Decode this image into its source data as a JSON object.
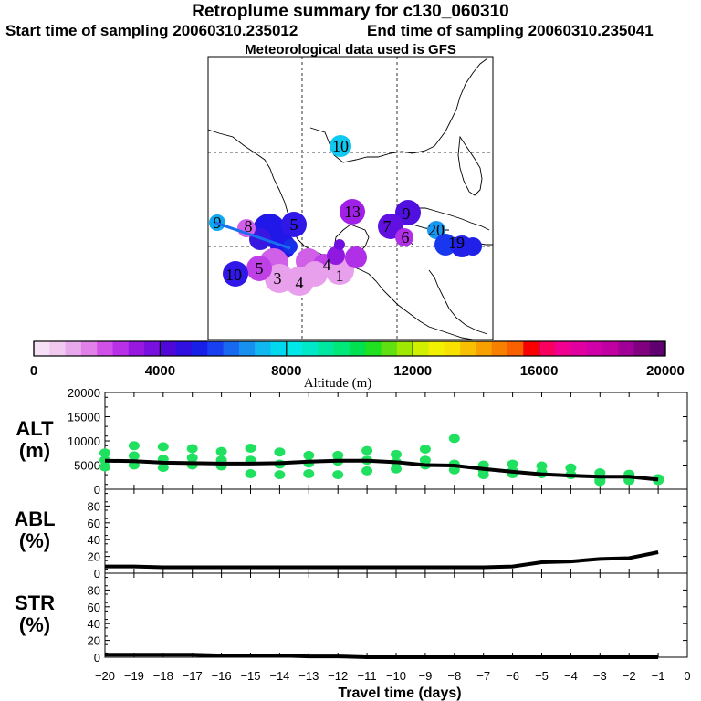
{
  "titles": {
    "main": "Retroplume summary for c130_060310",
    "start": "Start time of sampling 20060310.235012",
    "end": "End time of sampling 20060310.235041",
    "met": "Meteorological data used is GFS"
  },
  "colorbar": {
    "label": "Altitude (m)",
    "ticks": [
      "0",
      "4000",
      "8000",
      "12000",
      "16000",
      "20000"
    ],
    "colors": [
      "#f6e0f6",
      "#f0c8f0",
      "#e8a8ec",
      "#e080e8",
      "#d050e8",
      "#b830e8",
      "#9818e0",
      "#7810e0",
      "#5008d8",
      "#3010e0",
      "#1820e8",
      "#1840f0",
      "#1868f0",
      "#1890f0",
      "#10b8f0",
      "#00d8f0",
      "#00e8e8",
      "#00e8c8",
      "#00e8a0",
      "#00e878",
      "#00e050",
      "#20e020",
      "#60e010",
      "#a0e800",
      "#d0f000",
      "#f0f000",
      "#f8e000",
      "#f8c000",
      "#f8a000",
      "#f88000",
      "#f86000",
      "#f80000",
      "#f80060",
      "#f00090",
      "#e000a0",
      "#d000a8",
      "#c000a0",
      "#a00098",
      "#800080",
      "#600070"
    ]
  },
  "map": {
    "labels": [
      {
        "t": "10",
        "c": "#10c8f0"
      },
      {
        "t": "9",
        "c": "#7818e0"
      },
      {
        "t": "13",
        "c": "#a020e8"
      },
      {
        "t": "20",
        "c": "#1898f0"
      },
      {
        "t": "19",
        "c": "#1838f0"
      },
      {
        "t": "6",
        "c": "#b030e8"
      },
      {
        "t": "7",
        "c": "#7010e0"
      },
      {
        "t": "5",
        "c": "#3018e8"
      },
      {
        "t": "8",
        "c": "#3018e8"
      },
      {
        "t": "9",
        "c": "#10a8f0"
      },
      {
        "t": "10",
        "c": "#4010e0"
      },
      {
        "t": "5",
        "c": "#d060e8"
      },
      {
        "t": "3",
        "c": "#e8a0ec"
      },
      {
        "t": "4",
        "c": "#e8a0ec"
      },
      {
        "t": "1",
        "c": "#e8a0ec"
      },
      {
        "t": "4",
        "c": "#c040e8"
      }
    ]
  },
  "chart_data": [
    {
      "type": "scatter",
      "name": "ALT",
      "ylabel": "ALT\n(m)",
      "ylim": [
        0,
        20000
      ],
      "yticks": [
        "0",
        "5000",
        "10000",
        "15000",
        "20000"
      ],
      "x": [
        -20,
        -19,
        -18,
        -17,
        -16,
        -15,
        -14,
        -13,
        -12,
        -11,
        -10,
        -9,
        -8,
        -7,
        -6,
        -5,
        -4,
        -3,
        -2,
        -1
      ],
      "median": [
        5900,
        5800,
        5500,
        5400,
        5300,
        5300,
        5400,
        5700,
        5900,
        5900,
        5600,
        5000,
        4900,
        4200,
        3600,
        3100,
        2800,
        2600,
        2600,
        2000
      ],
      "points": [
        [
          -20,
          7500
        ],
        [
          -20,
          6000
        ],
        [
          -20,
          4600
        ],
        [
          -19,
          9000
        ],
        [
          -19,
          6900
        ],
        [
          -19,
          5000
        ],
        [
          -18,
          8800
        ],
        [
          -18,
          6200
        ],
        [
          -18,
          4500
        ],
        [
          -17,
          8400
        ],
        [
          -17,
          6500
        ],
        [
          -17,
          5000
        ],
        [
          -16,
          7800
        ],
        [
          -16,
          6000
        ],
        [
          -16,
          4800
        ],
        [
          -15,
          8500
        ],
        [
          -15,
          6000
        ],
        [
          -15,
          3200
        ],
        [
          -14,
          7700
        ],
        [
          -14,
          5200
        ],
        [
          -14,
          3000
        ],
        [
          -13,
          7000
        ],
        [
          -13,
          5400
        ],
        [
          -13,
          3200
        ],
        [
          -12,
          7000
        ],
        [
          -12,
          5800
        ],
        [
          -12,
          3000
        ],
        [
          -11,
          8000
        ],
        [
          -11,
          6000
        ],
        [
          -11,
          3800
        ],
        [
          -10,
          7200
        ],
        [
          -10,
          5600
        ],
        [
          -10,
          4200
        ],
        [
          -9,
          8300
        ],
        [
          -9,
          6000
        ],
        [
          -9,
          5000
        ],
        [
          -8,
          10500
        ],
        [
          -8,
          5200
        ],
        [
          -8,
          4000
        ],
        [
          -7,
          5000
        ],
        [
          -7,
          3900
        ],
        [
          -7,
          3000
        ],
        [
          -6,
          5200
        ],
        [
          -6,
          3800
        ],
        [
          -6,
          3200
        ],
        [
          -5,
          4800
        ],
        [
          -5,
          3200
        ],
        [
          -5,
          3500
        ],
        [
          -4,
          4400
        ],
        [
          -4,
          3000
        ],
        [
          -3,
          3400
        ],
        [
          -3,
          2000
        ],
        [
          -3,
          1600
        ],
        [
          -2,
          3100
        ],
        [
          -2,
          2200
        ],
        [
          -2,
          1800
        ],
        [
          -1,
          2200
        ],
        [
          -1,
          1800
        ]
      ]
    },
    {
      "type": "line",
      "name": "ABL",
      "ylabel": "ABL\n(%)",
      "ylim": [
        0,
        100
      ],
      "yticks": [
        "0",
        "20",
        "40",
        "60",
        "80"
      ],
      "x": [
        -20,
        -19,
        -18,
        -17,
        -16,
        -15,
        -14,
        -13,
        -12,
        -11,
        -10,
        -9,
        -8,
        -7,
        -6,
        -5,
        -4,
        -3,
        -2,
        -1
      ],
      "values": [
        8,
        8,
        7,
        7,
        7,
        7,
        7,
        7,
        7,
        7,
        7,
        7,
        7,
        7,
        8,
        13,
        14,
        17,
        18,
        25
      ]
    },
    {
      "type": "line",
      "name": "STR",
      "ylabel": "STR\n(%)",
      "ylim": [
        0,
        100
      ],
      "yticks": [
        "0",
        "20",
        "40",
        "60",
        "80"
      ],
      "x": [
        -20,
        -19,
        -18,
        -17,
        -16,
        -15,
        -14,
        -13,
        -12,
        -11,
        -10,
        -9,
        -8,
        -7,
        -6,
        -5,
        -4,
        -3,
        -2,
        -1
      ],
      "values": [
        3,
        3,
        3,
        3,
        2,
        2,
        2,
        1,
        1,
        0,
        0,
        0,
        0,
        0,
        0,
        0,
        0,
        0,
        0,
        0
      ]
    }
  ],
  "xaxis": {
    "label": "Travel time (days)",
    "ticks": [
      "−20",
      "−19",
      "−18",
      "−17",
      "−16",
      "−15",
      "−14",
      "−13",
      "−12",
      "−11",
      "−10",
      "−9",
      "−8",
      "−7",
      "−6",
      "−5",
      "−4",
      "−3",
      "−2",
      "−1",
      "0"
    ]
  }
}
